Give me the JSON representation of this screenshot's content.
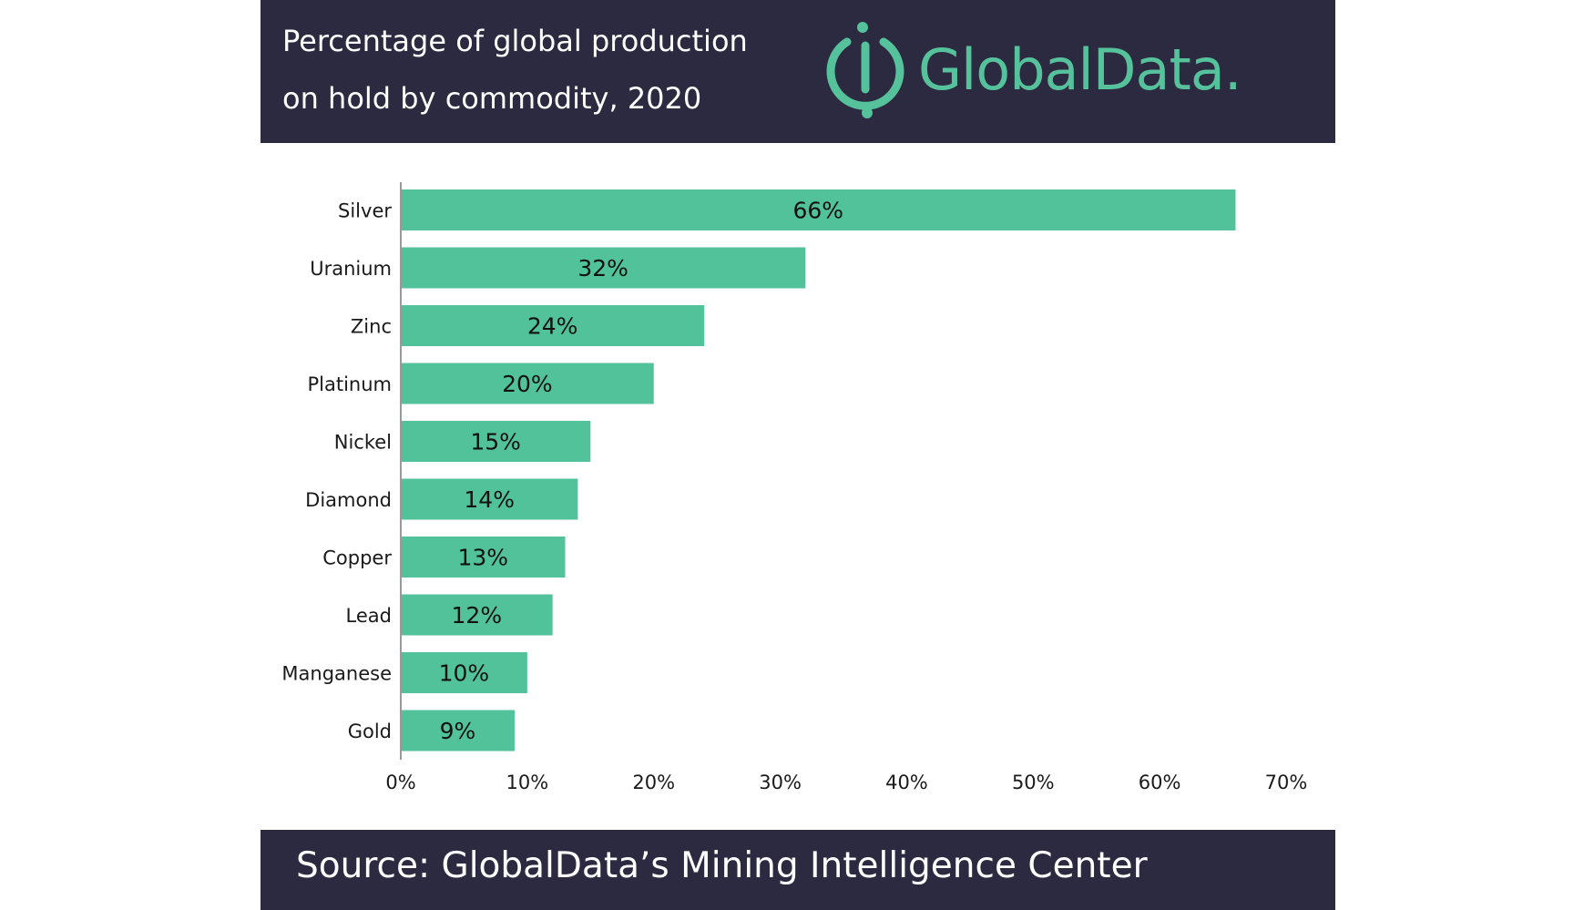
{
  "header": {
    "title_line_1": "Percentage of global production",
    "title_line_2": "on hold by commodity, 2020",
    "logo_text": "GlobalData."
  },
  "footer": {
    "source": "Source: GlobalData’s Mining Intelligence Center"
  },
  "colors": {
    "bar": "#52c29a",
    "header_bg": "#2b2a40",
    "logo": "#56c29c",
    "axis": "#9a9a9a"
  },
  "chart_data": {
    "type": "bar",
    "orientation": "horizontal",
    "categories": [
      "Silver",
      "Uranium",
      "Zinc",
      "Platinum",
      "Nickel",
      "Diamond",
      "Copper",
      "Lead",
      "Manganese",
      "Gold"
    ],
    "values": [
      66,
      32,
      24,
      20,
      15,
      14,
      13,
      12,
      10,
      9
    ],
    "value_labels": [
      "66%",
      "32%",
      "24%",
      "20%",
      "15%",
      "14%",
      "13%",
      "12%",
      "10%",
      "9%"
    ],
    "xlim": [
      0,
      70
    ],
    "xticks": [
      0,
      10,
      20,
      30,
      40,
      50,
      60,
      70
    ],
    "xtick_labels": [
      "0%",
      "10%",
      "20%",
      "30%",
      "40%",
      "50%",
      "60%",
      "70%"
    ],
    "grid": false,
    "legend": "none"
  }
}
